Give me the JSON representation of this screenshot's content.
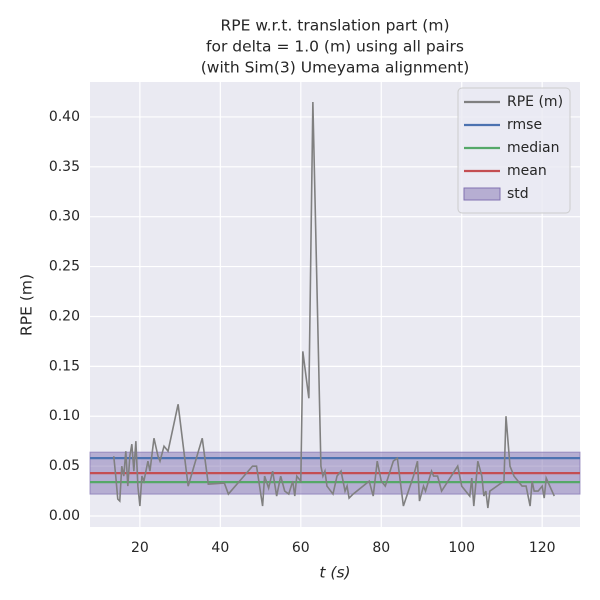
{
  "chart_data": {
    "type": "line",
    "title": [
      "RPE w.r.t. translation part (m)",
      "for delta = 1.0 (m) using all pairs",
      "(with Sim(3) Umeyama alignment)"
    ],
    "xlabel": "t (s)",
    "ylabel": "RPE (m)",
    "xlim": [
      7.6,
      129.4
    ],
    "ylim": [
      -0.011,
      0.435
    ],
    "xticks": [
      20,
      40,
      60,
      80,
      100,
      120
    ],
    "yticks": [
      {
        "value": 0,
        "label": "0.00"
      },
      {
        "value": 0.05,
        "label": "0.05"
      },
      {
        "value": 0.1,
        "label": "0.10"
      },
      {
        "value": 0.15,
        "label": "0.15"
      },
      {
        "value": 0.2,
        "label": "0.20"
      },
      {
        "value": 0.25,
        "label": "0.25"
      },
      {
        "value": 0.3,
        "label": "0.30"
      },
      {
        "value": 0.35,
        "label": "0.35"
      },
      {
        "value": 0.4,
        "label": "0.40"
      }
    ],
    "grid": true,
    "legend": "upper right",
    "series": [
      {
        "name": "RPE (m)",
        "color": "#808080",
        "style": "line",
        "x": [
          13.5,
          14,
          14.5,
          15,
          15.5,
          16,
          16.5,
          17,
          17.5,
          18,
          18.5,
          19,
          19.5,
          20,
          20.5,
          21,
          22,
          22.5,
          23.5,
          24.5,
          25,
          26,
          27,
          29.5,
          32,
          35.5,
          37,
          41,
          42,
          48,
          49,
          50.5,
          51,
          52,
          53,
          54,
          55,
          56,
          57,
          58,
          58.5,
          59,
          60,
          60.5,
          62,
          63,
          65,
          65.5,
          66,
          66.5,
          68,
          69,
          70,
          71,
          71.5,
          72,
          73,
          77,
          78,
          79,
          80,
          81,
          83,
          84,
          85.5,
          88,
          89,
          89.5,
          90.5,
          91,
          92.5,
          93,
          94,
          95,
          99,
          100,
          102,
          102.5,
          103,
          104,
          105,
          105.5,
          106,
          106.5,
          107,
          110.5,
          111,
          112,
          113,
          114,
          115,
          116,
          117,
          117.5,
          118,
          119,
          120,
          120.5,
          121,
          123
        ],
        "values": [
          0.06,
          0.04,
          0.017,
          0.015,
          0.05,
          0.04,
          0.065,
          0.03,
          0.06,
          0.072,
          0.045,
          0.075,
          0.03,
          0.01,
          0.04,
          0.035,
          0.055,
          0.045,
          0.078,
          0.06,
          0.055,
          0.07,
          0.065,
          0.112,
          0.03,
          0.078,
          0.032,
          0.033,
          0.022,
          0.05,
          0.05,
          0.01,
          0.04,
          0.028,
          0.045,
          0.02,
          0.04,
          0.025,
          0.022,
          0.035,
          0.02,
          0.04,
          0.035,
          0.165,
          0.118,
          0.415,
          0.05,
          0.04,
          0.045,
          0.03,
          0.022,
          0.04,
          0.045,
          0.025,
          0.03,
          0.018,
          0.022,
          0.035,
          0.02,
          0.055,
          0.035,
          0.03,
          0.055,
          0.058,
          0.01,
          0.04,
          0.055,
          0.015,
          0.03,
          0.025,
          0.045,
          0.04,
          0.04,
          0.025,
          0.05,
          0.03,
          0.02,
          0.038,
          0.01,
          0.055,
          0.04,
          0.02,
          0.025,
          0.008,
          0.025,
          0.035,
          0.1,
          0.05,
          0.04,
          0.035,
          0.03,
          0.03,
          0.01,
          0.035,
          0.025,
          0.025,
          0.03,
          0.018,
          0.038,
          0.02
        ]
      },
      {
        "name": "rmse",
        "color": "#4c72b0",
        "style": "hline",
        "values": [
          0.058
        ]
      },
      {
        "name": "median",
        "color": "#55a868",
        "style": "hline",
        "values": [
          0.034
        ]
      },
      {
        "name": "mean",
        "color": "#c44e52",
        "style": "hline",
        "values": [
          0.043
        ]
      },
      {
        "name": "std",
        "color": "#8172b2",
        "style": "band",
        "values": [
          0.022,
          0.064
        ]
      }
    ]
  }
}
